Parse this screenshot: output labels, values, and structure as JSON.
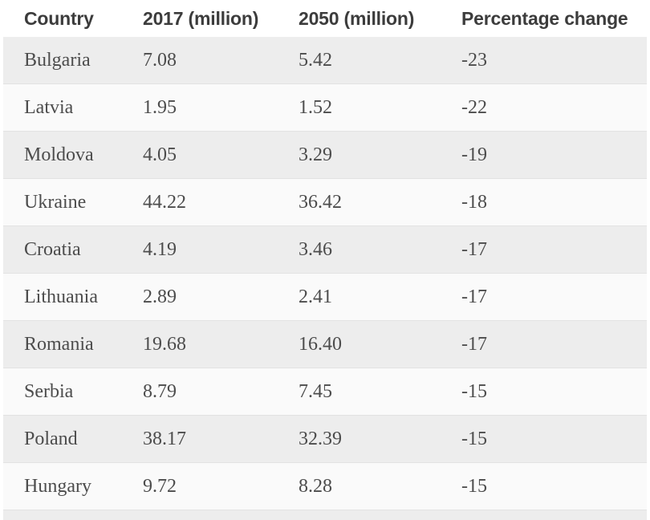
{
  "chart_data": {
    "type": "table",
    "columns": [
      "Country",
      "2017 (million)",
      "2050 (million)",
      "Percentage change"
    ],
    "rows": [
      [
        "Bulgaria",
        "7.08",
        "5.42",
        "-23"
      ],
      [
        "Latvia",
        "1.95",
        "1.52",
        "-22"
      ],
      [
        "Moldova",
        "4.05",
        "3.29",
        "-19"
      ],
      [
        "Ukraine",
        "44.22",
        "36.42",
        "-18"
      ],
      [
        "Croatia",
        "4.19",
        "3.46",
        "-17"
      ],
      [
        "Lithuania",
        "2.89",
        "2.41",
        "-17"
      ],
      [
        "Romania",
        "19.68",
        "16.40",
        "-17"
      ],
      [
        "Serbia",
        "8.79",
        "7.45",
        "-15"
      ],
      [
        "Poland",
        "38.17",
        "32.39",
        "-15"
      ],
      [
        "Hungary",
        "9.72",
        "8.28",
        "-15"
      ]
    ],
    "layout": {
      "striped": true,
      "first_data_row_shaded": true
    }
  },
  "colors": {
    "stripe_row_bg": "#ededed",
    "alt_row_bg": "#fafafa",
    "header_bg": "#ffffff",
    "header_text": "#3c3c3c",
    "body_text": "#4c4c4c",
    "row_divider": "#e2e2e2"
  }
}
